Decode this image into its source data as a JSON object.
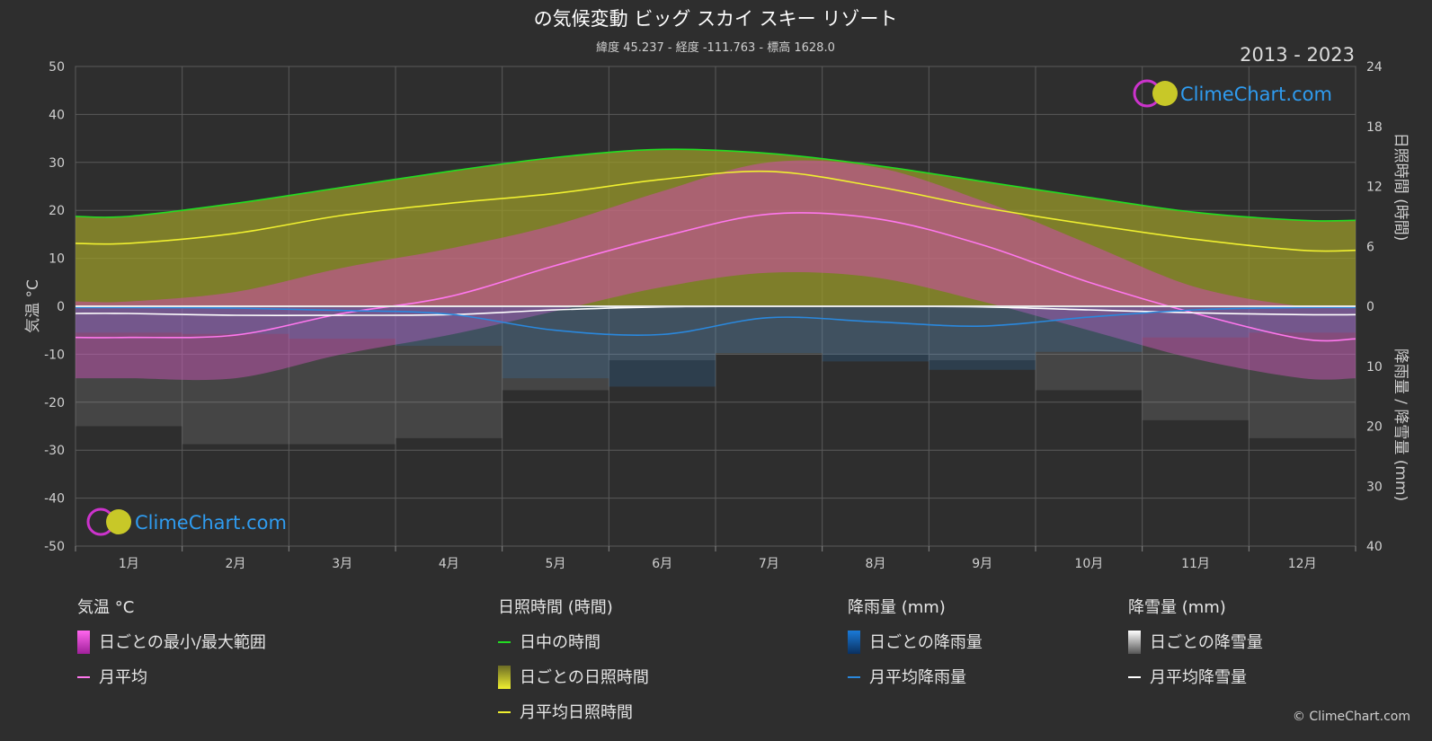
{
  "title": "の気候変動 ビッグ スカイ スキー リゾート",
  "subtitle": "緯度 45.237 - 経度 -111.763 - 標高 1628.0",
  "year_range": "2013 - 2023",
  "brand": "ClimeChart.com",
  "copyright": "© ClimeChart.com",
  "axes": {
    "left_title": "気温 °C",
    "right_top_title": "日照時間 (時間)",
    "right_bottom_title": "降雨量 / 降雪量 (mm)",
    "left_ticks": [
      "50",
      "40",
      "30",
      "20",
      "10",
      "0",
      "-10",
      "-20",
      "-30",
      "-40",
      "-50"
    ],
    "right_top_ticks": [
      "24",
      "18",
      "12",
      "6",
      "0"
    ],
    "right_bottom_ticks": [
      "10",
      "20",
      "30",
      "40"
    ]
  },
  "legend": {
    "temp": {
      "head": "気温 °C",
      "range": "日ごとの最小/最大範囲",
      "avg": "月平均"
    },
    "sun": {
      "head": "日照時間 (時間)",
      "daylight": "日中の時間",
      "daily": "日ごとの日照時間",
      "avg": "月平均日照時間"
    },
    "rain": {
      "head": "降雨量 (mm)",
      "daily": "日ごとの降雨量",
      "avg": "月平均降雨量"
    },
    "snow": {
      "head": "降雪量 (mm)",
      "daily": "日ごとの降雪量",
      "avg": "月平均降雪量"
    }
  },
  "colors": {
    "background": "#2e2e2e",
    "daylight": "#22dd22",
    "sunshine": "#f0f030",
    "sunshine_band": "#9a9a2a",
    "temp_avg": "#ff77ee",
    "temp_band": "#e040c8",
    "rain": "#2a88dd",
    "snow": "#ffffff",
    "brand": "#2f9cf0"
  },
  "chart_data": {
    "type": "line",
    "categories": [
      "1月",
      "2月",
      "3月",
      "4月",
      "5月",
      "6月",
      "7月",
      "8月",
      "9月",
      "10月",
      "11月",
      "12月"
    ],
    "x_positions": [
      0.5,
      1.5,
      2.5,
      3.5,
      4.5,
      5.5,
      6.5,
      7.5,
      8.5,
      9.5,
      10.5,
      11.5
    ],
    "ylim_temp": [
      -50,
      50
    ],
    "ylim_sun": [
      0,
      24
    ],
    "ylim_precip": [
      40,
      0
    ],
    "series": [
      {
        "name": "日中の時間",
        "axis": "sun",
        "values": [
          9.0,
          10.3,
          11.9,
          13.5,
          14.9,
          15.7,
          15.3,
          14.1,
          12.5,
          10.9,
          9.4,
          8.6
        ]
      },
      {
        "name": "月平均日照時間",
        "axis": "sun",
        "values": [
          6.3,
          7.3,
          9.1,
          10.3,
          11.3,
          12.7,
          13.5,
          12.0,
          9.9,
          8.2,
          6.7,
          5.6
        ]
      },
      {
        "name": "月平均",
        "axis": "temp",
        "values": [
          -6.5,
          -6.0,
          -1.5,
          2.0,
          8.5,
          14.5,
          19.2,
          18.3,
          12.8,
          5.0,
          -1.5,
          -6.8
        ]
      },
      {
        "name": "月平均降雨量",
        "axis": "precip",
        "values": [
          0.2,
          0.3,
          0.7,
          1.3,
          4.0,
          4.7,
          1.9,
          2.6,
          3.3,
          1.8,
          0.6,
          0.2
        ]
      },
      {
        "name": "月平均降雪量",
        "axis": "precip",
        "values": [
          1.2,
          1.5,
          1.5,
          1.4,
          0.6,
          0.1,
          0.0,
          0.0,
          0.1,
          0.6,
          1.1,
          1.4
        ]
      }
    ],
    "daily_range": {
      "tmax": [
        1,
        3,
        8,
        12,
        17,
        24,
        30,
        29,
        22,
        13,
        4,
        0
      ],
      "tmin": [
        -15,
        -15,
        -10,
        -6,
        -1,
        4,
        7,
        6,
        1,
        -5,
        -11,
        -15
      ]
    },
    "grid": true,
    "legend_position": "bottom"
  }
}
